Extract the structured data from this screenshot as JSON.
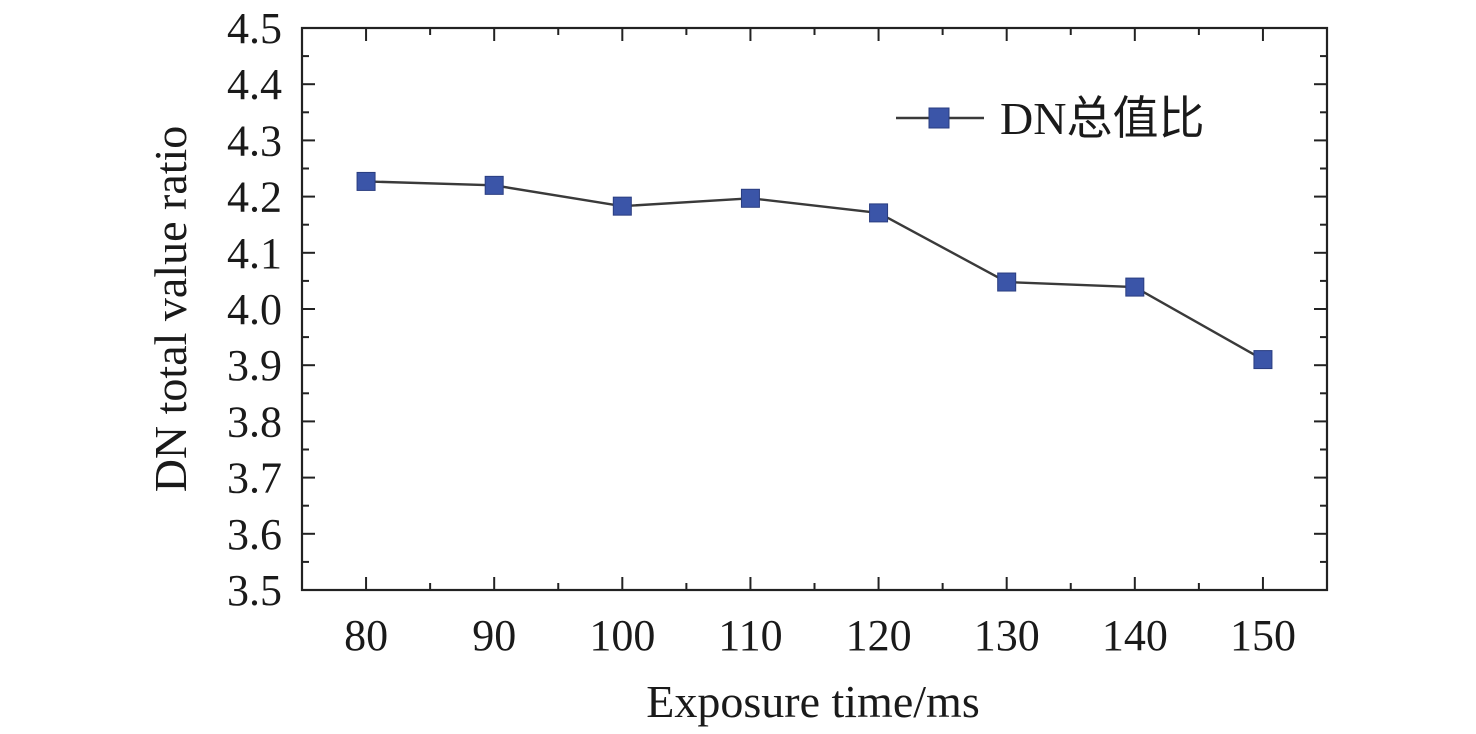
{
  "chart_data": {
    "type": "line",
    "xlabel": "Exposure time/ms",
    "ylabel": "DN total value ratio",
    "x": [
      80,
      90,
      100,
      110,
      120,
      130,
      140,
      150
    ],
    "xlim": [
      75,
      155
    ],
    "ylim": [
      3.5,
      4.5
    ],
    "x_ticks": [
      "80",
      "90",
      "100",
      "110",
      "120",
      "130",
      "140",
      "150"
    ],
    "y_ticks": [
      "3.5",
      "3.6",
      "3.7",
      "3.8",
      "3.9",
      "4.0",
      "4.1",
      "4.2",
      "4.3",
      "4.4",
      "4.5"
    ],
    "series": [
      {
        "name": "DN总值比",
        "values": [
          4.227,
          4.22,
          4.183,
          4.197,
          4.171,
          4.048,
          4.039,
          3.91
        ],
        "line_color": "#3a3a3a",
        "marker": "square",
        "marker_color": "#3b55a8"
      }
    ],
    "legend": "top-right",
    "grid": false
  }
}
